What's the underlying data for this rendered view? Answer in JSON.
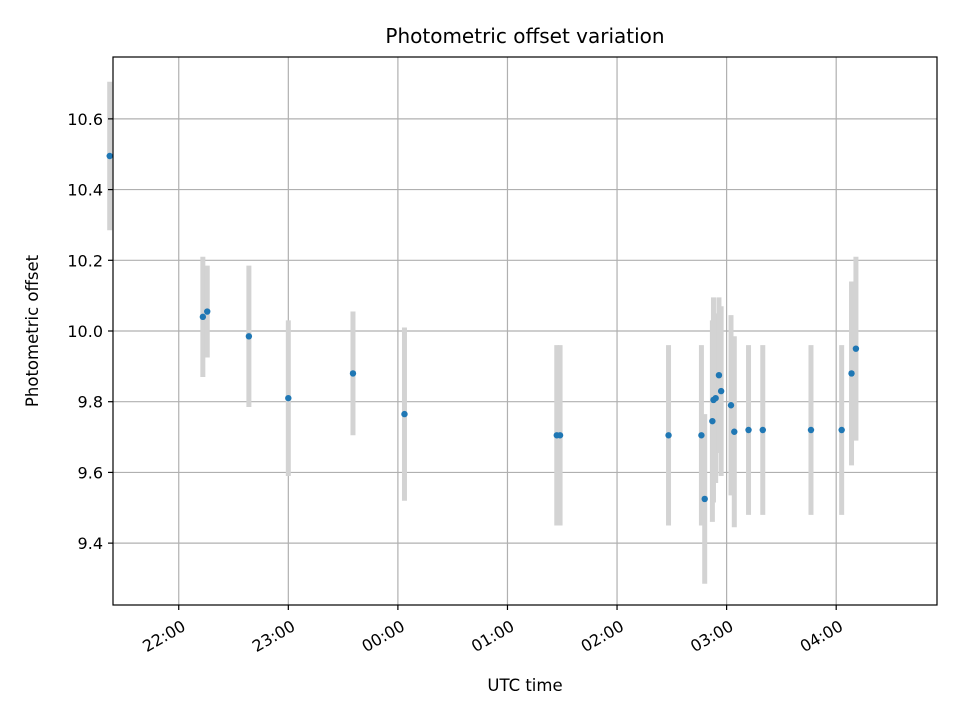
{
  "chart_data": {
    "type": "scatter",
    "title": "Photometric offset variation",
    "xlabel": "UTC time",
    "ylabel": "Photometric offset",
    "x_axis_kind": "time",
    "x_start_time": "21:00",
    "xlim_hours": [
      21.4,
      28.92
    ],
    "ylim": [
      9.225,
      10.775
    ],
    "grid": true,
    "x_ticks": [
      {
        "value": 22,
        "label": "22:00"
      },
      {
        "value": 23,
        "label": "23:00"
      },
      {
        "value": 24,
        "label": "00:00"
      },
      {
        "value": 25,
        "label": "01:00"
      },
      {
        "value": 26,
        "label": "02:00"
      },
      {
        "value": 27,
        "label": "03:00"
      },
      {
        "value": 28,
        "label": "04:00"
      }
    ],
    "y_ticks": [
      {
        "value": 9.4,
        "label": "9.4"
      },
      {
        "value": 9.6,
        "label": "9.6"
      },
      {
        "value": 9.8,
        "label": "9.8"
      },
      {
        "value": 10.0,
        "label": "10.0"
      },
      {
        "value": 10.2,
        "label": "10.2"
      },
      {
        "value": 10.4,
        "label": "10.4"
      },
      {
        "value": 10.6,
        "label": "10.6"
      }
    ],
    "colors": {
      "point": "#1f77b4",
      "errorbar": "#d3d3d3",
      "grid": "#b0b0b0"
    },
    "series": [
      {
        "points": [
          {
            "t": 21.37,
            "y": 10.495,
            "err": 0.21
          },
          {
            "t": 22.22,
            "y": 10.04,
            "err": 0.17
          },
          {
            "t": 22.26,
            "y": 10.055,
            "err": 0.13
          },
          {
            "t": 22.64,
            "y": 9.985,
            "err": 0.2
          },
          {
            "t": 23.0,
            "y": 9.81,
            "err": 0.22
          },
          {
            "t": 23.59,
            "y": 9.88,
            "err": 0.175
          },
          {
            "t": 24.06,
            "y": 9.765,
            "err": 0.245
          },
          {
            "t": 25.45,
            "y": 9.705,
            "err": 0.255
          },
          {
            "t": 25.48,
            "y": 9.705,
            "err": 0.255
          },
          {
            "t": 26.47,
            "y": 9.705,
            "err": 0.255
          },
          {
            "t": 26.77,
            "y": 9.705,
            "err": 0.255
          },
          {
            "t": 26.8,
            "y": 9.525,
            "err": 0.24
          },
          {
            "t": 26.87,
            "y": 9.745,
            "err": 0.285
          },
          {
            "t": 26.88,
            "y": 9.805,
            "err": 0.29
          },
          {
            "t": 26.9,
            "y": 9.81,
            "err": 0.24
          },
          {
            "t": 26.93,
            "y": 9.875,
            "err": 0.22
          },
          {
            "t": 26.95,
            "y": 9.83,
            "err": 0.24
          },
          {
            "t": 27.04,
            "y": 9.79,
            "err": 0.255
          },
          {
            "t": 27.07,
            "y": 9.715,
            "err": 0.27
          },
          {
            "t": 27.2,
            "y": 9.72,
            "err": 0.24
          },
          {
            "t": 27.33,
            "y": 9.72,
            "err": 0.24
          },
          {
            "t": 27.77,
            "y": 9.72,
            "err": 0.24
          },
          {
            "t": 28.05,
            "y": 9.72,
            "err": 0.24
          },
          {
            "t": 28.14,
            "y": 9.88,
            "err": 0.26
          },
          {
            "t": 28.18,
            "y": 9.95,
            "err": 0.26
          }
        ]
      }
    ]
  }
}
